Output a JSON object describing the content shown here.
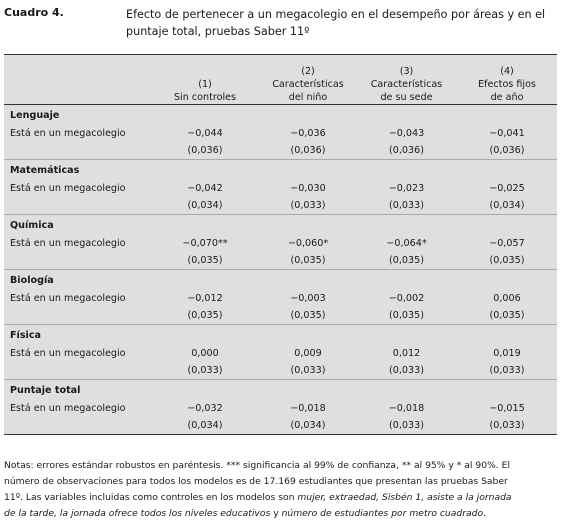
{
  "caption": {
    "label": "Cuadro 4.",
    "text": "Efecto de pertenecer a un megacolegio en el desempeño por áreas y en el puntaje total, pruebas Saber 11º"
  },
  "columns": [
    {
      "num": "(1)",
      "l1": "Sin controles",
      "l2": ""
    },
    {
      "num": "(2)",
      "l1": "Características",
      "l2": "del niño"
    },
    {
      "num": "(3)",
      "l1": "Características",
      "l2": "de su sede"
    },
    {
      "num": "(4)",
      "l1": "Efectos fijos",
      "l2": "de año"
    }
  ],
  "sections": [
    {
      "title": "Lenguaje",
      "row_label": "Está en un megacolegio",
      "coef": [
        "−0,044",
        "−0,036",
        "−0,043",
        "−0,041"
      ],
      "se": [
        "(0,036)",
        "(0,036)",
        "(0,036)",
        "(0,036)"
      ]
    },
    {
      "title": "Matemáticas",
      "row_label": "Está en un megacolegio",
      "coef": [
        "−0,042",
        "−0,030",
        "−0,023",
        "−0,025"
      ],
      "se": [
        "(0,034)",
        "(0,033)",
        "(0,033)",
        "(0,034)"
      ]
    },
    {
      "title": "Química",
      "row_label": "Está en un megacolegio",
      "coef": [
        "−0,070**",
        "−0,060*",
        "−0,064*",
        "−0,057"
      ],
      "se": [
        "(0,035)",
        "(0,035)",
        "(0,035)",
        "(0,035)"
      ]
    },
    {
      "title": "Biología",
      "row_label": "Está en un megacolegio",
      "coef": [
        "−0,012",
        "−0,003",
        "−0,002",
        "0,006"
      ],
      "se": [
        "(0,035)",
        "(0,035)",
        "(0,035)",
        "(0,035)"
      ]
    },
    {
      "title": "Física",
      "row_label": "Está en un megacolegio",
      "coef": [
        "0,000",
        "0,009",
        "0,012",
        "0,019"
      ],
      "se": [
        "(0,033)",
        "(0,033)",
        "(0,033)",
        "(0,033)"
      ]
    },
    {
      "title": "Puntaje total",
      "row_label": "Está en un megacolegio",
      "coef": [
        "−0,032",
        "−0,018",
        "−0,018",
        "−0,015"
      ],
      "se": [
        "(0,034)",
        "(0,034)",
        "(0,033)",
        "(0,033)"
      ]
    }
  ],
  "notes": {
    "n1": "Notas: errores estándar robustos en paréntesis. *** significancia al 99% de confianza, ** al 95% y * al 90%. El",
    "n2": "número de observaciones para todos los modelos es de 17.169 estudiantes que presentan las pruebas Saber",
    "n3a": "11º. Las variables incluidas como controles en los modelos son ",
    "i1": "mujer, extraedad, Sisbén 1, asiste a la jornada",
    "i2": "de la tarde, la jornada ofrece todos los niveles educativos",
    "n4b": " y ",
    "i3": "número de estudiantes por metro cuadrado",
    "n4c": "."
  }
}
